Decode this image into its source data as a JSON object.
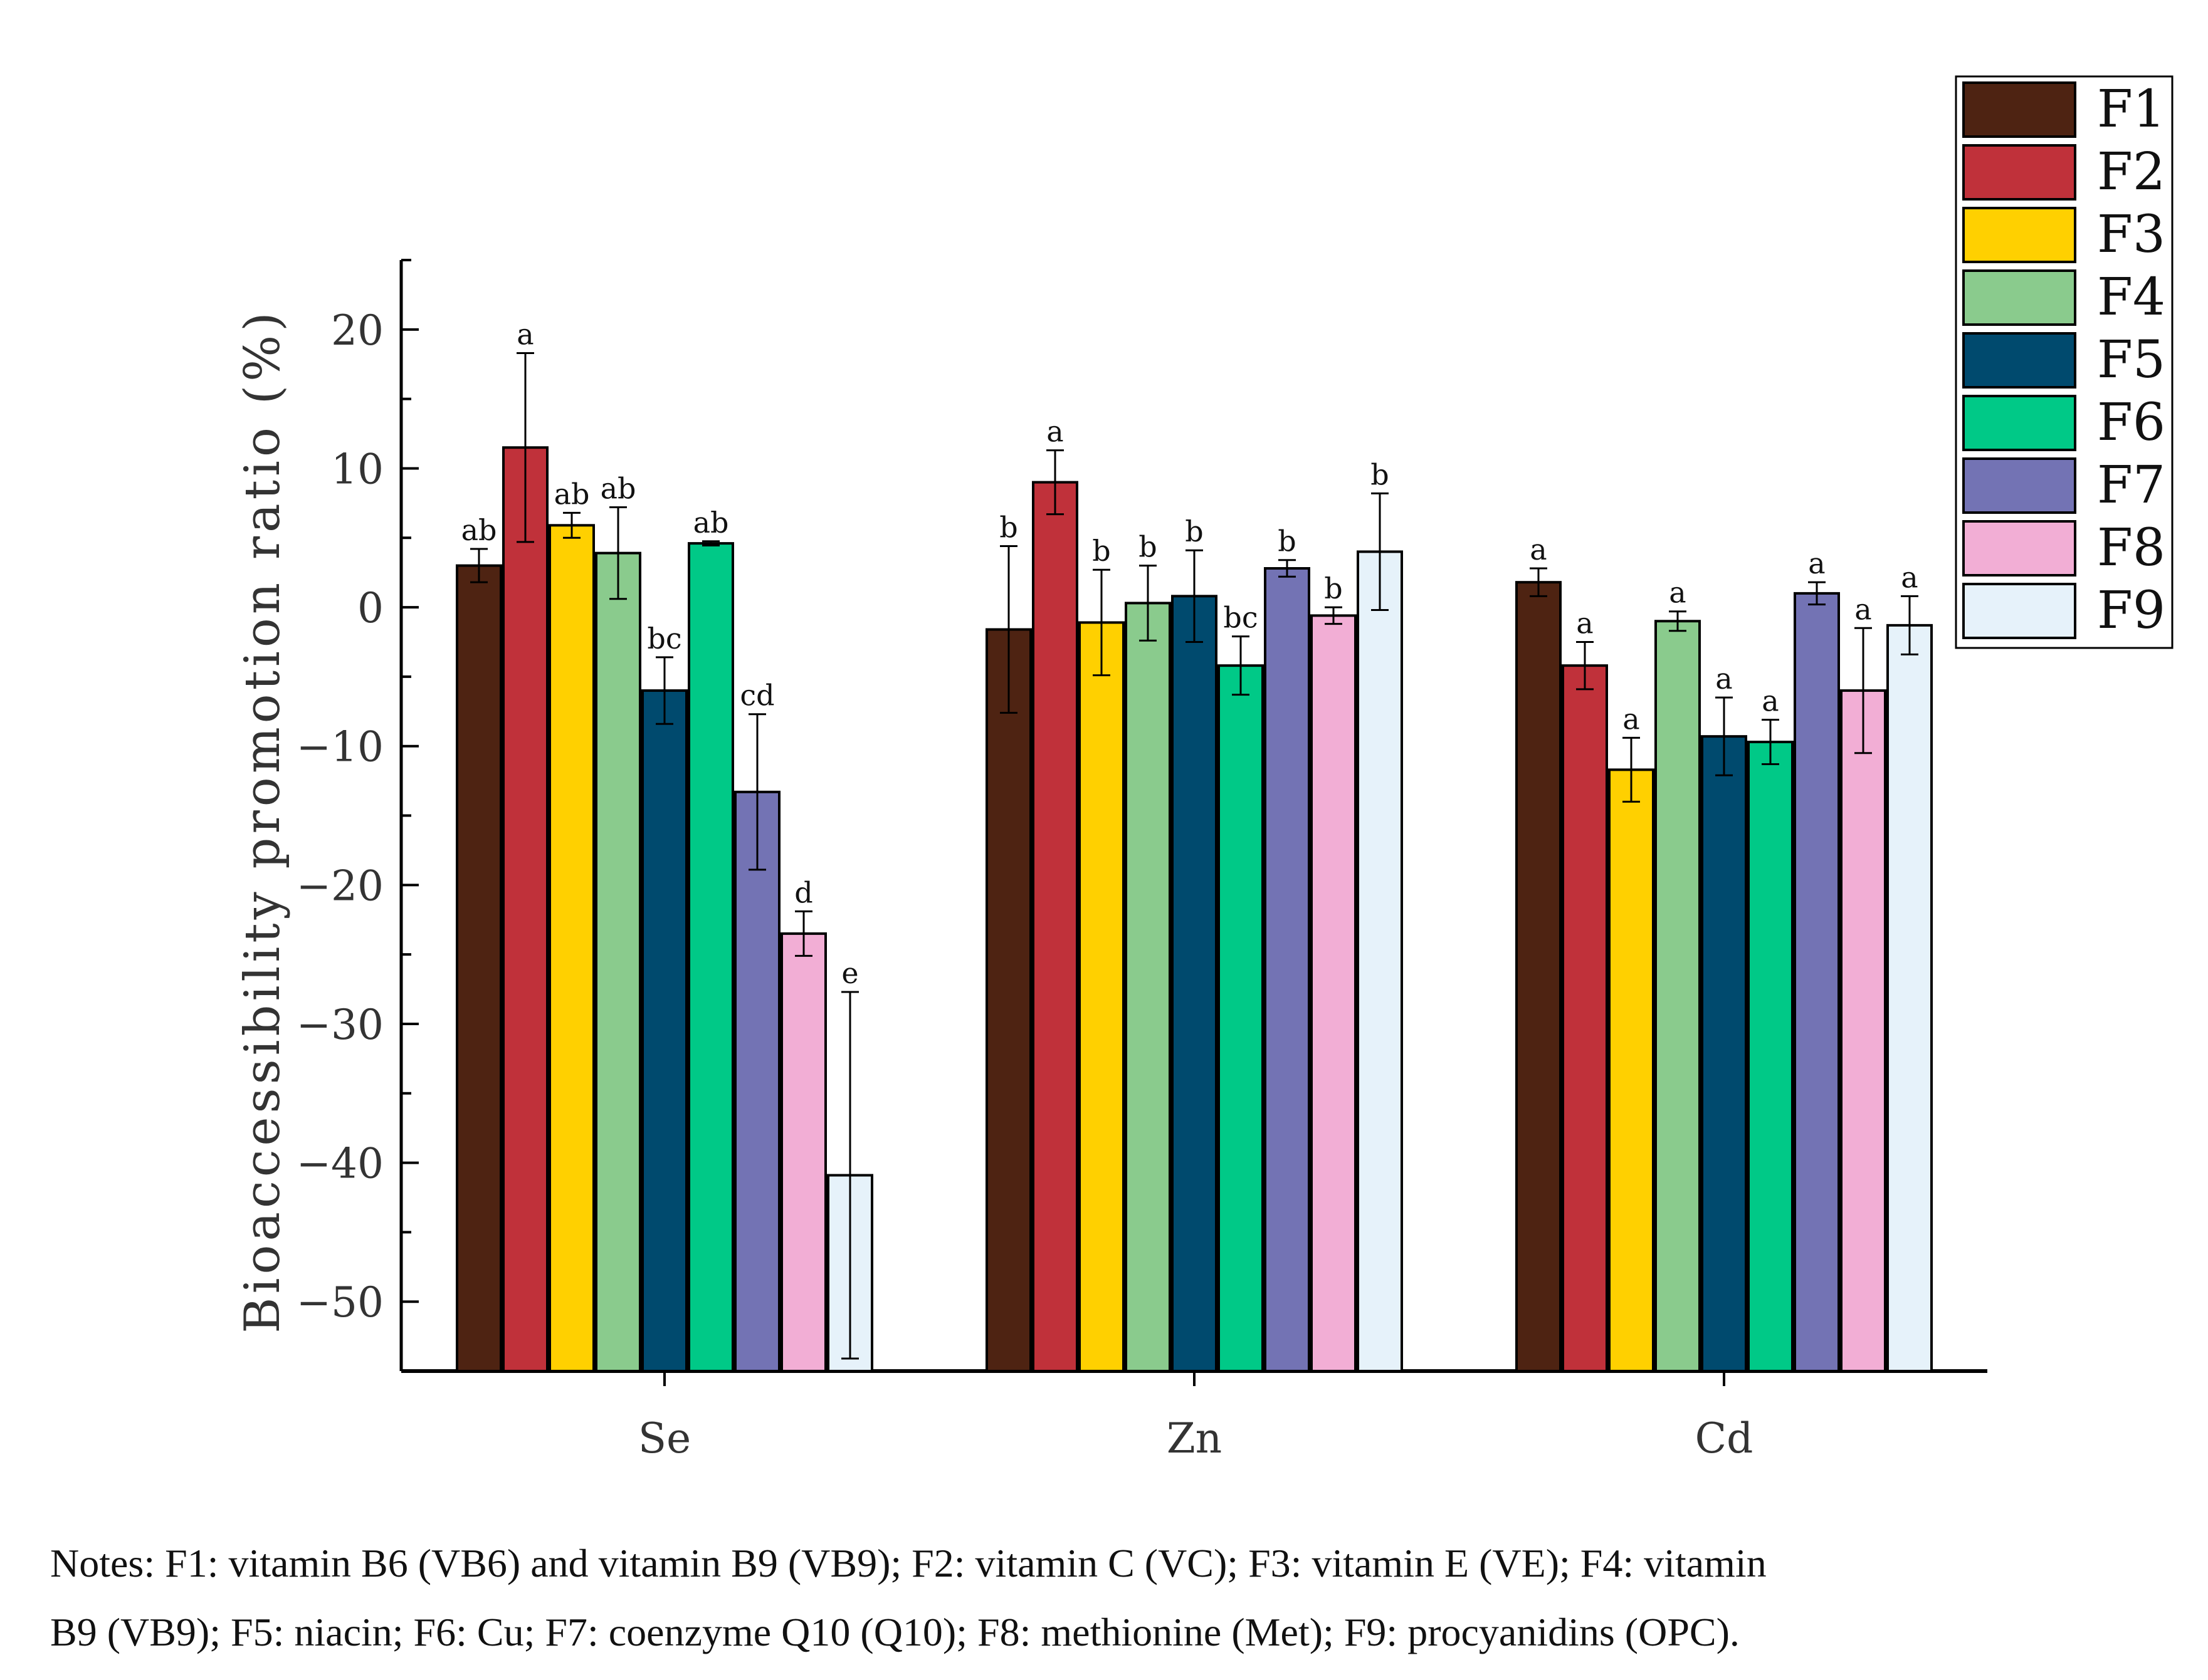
{
  "chart_data": {
    "type": "bar",
    "title": "",
    "xlabel": "",
    "ylabel": "Bioaccessibility promotion ratio (%)",
    "ylim": [
      -55,
      25
    ],
    "yticks": [
      20,
      10,
      0,
      -10,
      -20,
      -30,
      -40,
      -50
    ],
    "categories": [
      "Se",
      "Zn",
      "Cd"
    ],
    "legend_position": "top-right",
    "series": [
      {
        "name": "F1",
        "color": "#4E2312",
        "values": [
          3.0,
          -1.6,
          1.8
        ],
        "errors": [
          1.2,
          6.0,
          1.0
        ],
        "labels": [
          "ab",
          "b",
          "a"
        ]
      },
      {
        "name": "F2",
        "color": "#C0313A",
        "values": [
          11.5,
          9.0,
          -4.2
        ],
        "errors": [
          6.8,
          2.3,
          1.7
        ],
        "labels": [
          "a",
          "a",
          "a"
        ]
      },
      {
        "name": "F3",
        "color": "#FFD000",
        "values": [
          5.9,
          -1.1,
          -11.7
        ],
        "errors": [
          0.9,
          3.8,
          2.3
        ],
        "labels": [
          "ab",
          "b",
          "a"
        ]
      },
      {
        "name": "F4",
        "color": "#8ACB8D",
        "values": [
          3.9,
          0.3,
          -1.0
        ],
        "errors": [
          3.3,
          2.7,
          0.7
        ],
        "labels": [
          "ab",
          "b",
          "a"
        ]
      },
      {
        "name": "F5",
        "color": "#004A6E",
        "values": [
          -6.0,
          0.8,
          -9.3
        ],
        "errors": [
          2.4,
          3.3,
          2.8
        ],
        "labels": [
          "bc",
          "b",
          "a"
        ]
      },
      {
        "name": "F6",
        "color": "#00C987",
        "values": [
          4.6,
          -4.2,
          -9.7
        ],
        "errors": [
          0.15,
          2.1,
          1.6
        ],
        "labels": [
          "ab",
          "bc",
          "a"
        ]
      },
      {
        "name": "F7",
        "color": "#7373B4",
        "values": [
          -13.3,
          2.8,
          1.0
        ],
        "errors": [
          5.6,
          0.6,
          0.8
        ],
        "labels": [
          "cd",
          "b",
          "a"
        ]
      },
      {
        "name": "F8",
        "color": "#F2AED5",
        "values": [
          -23.5,
          -0.6,
          -6.0
        ],
        "errors": [
          1.6,
          0.6,
          4.5
        ],
        "labels": [
          "d",
          "b",
          "a"
        ]
      },
      {
        "name": "F9",
        "color": "#E6F2FA",
        "values": [
          -40.9,
          4.0,
          -1.3
        ],
        "errors": [
          13.2,
          4.2,
          2.1
        ],
        "labels": [
          "e",
          "b",
          "a"
        ]
      }
    ]
  },
  "notes": {
    "line1": "Notes: F1: vitamin B6 (VB6) and vitamin B9 (VB9); F2: vitamin C (VC); F3: vitamin E (VE); F4: vitamin",
    "line2": "B9 (VB9); F5: niacin; F6: Cu; F7: coenzyme Q10 (Q10); F8: methionine (Met); F9: procyanidins (OPC)."
  }
}
